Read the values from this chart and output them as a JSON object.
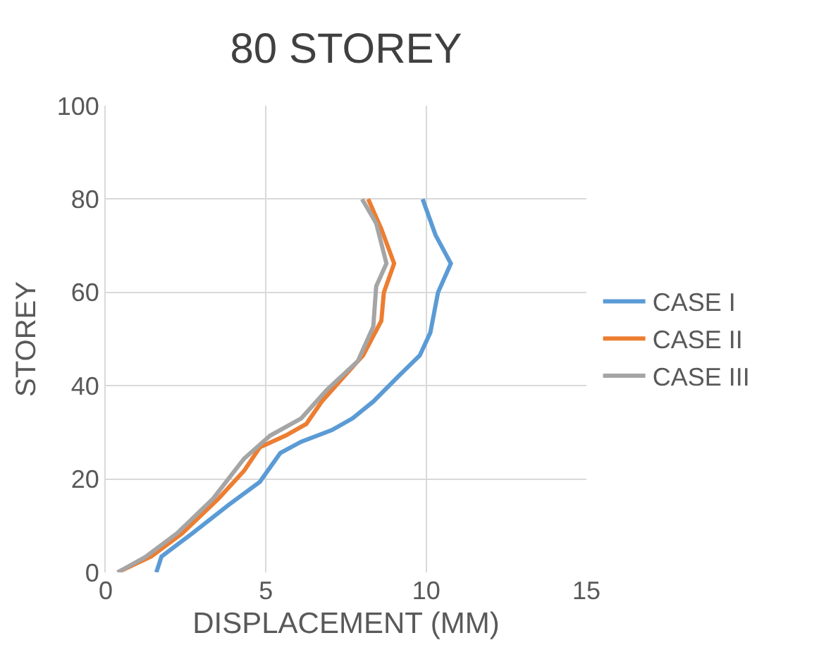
{
  "chart_data": {
    "type": "line",
    "title": "80 STOREY",
    "xlabel": "DISPLACEMENT (MM)",
    "ylabel": "STOREY",
    "xlim": [
      0,
      15
    ],
    "xticks": [
      0,
      5,
      10,
      15
    ],
    "ylim": [
      0,
      100
    ],
    "yticks": [
      0,
      20,
      40,
      60,
      80,
      100
    ],
    "grid": true,
    "legend": "right",
    "marker": "none",
    "line_style": "solid",
    "series": [
      {
        "name": "CASE I",
        "color": "#5b9bd5",
        "x": [
          1.58,
          1.74,
          2.71,
          3.84,
          4.81,
          5.45,
          6.1,
          7.06,
          7.7,
          8.35,
          9.16,
          9.8,
          10.13,
          10.37,
          10.77,
          10.29,
          9.89
        ],
        "values": [
          0,
          3.4,
          8.4,
          14.5,
          19.4,
          25.6,
          28,
          30.5,
          33,
          36.6,
          42.2,
          46.5,
          51.4,
          60,
          66.2,
          72.3,
          80
        ]
      },
      {
        "name": "CASE II",
        "color": "#ed7d31",
        "x": [
          0.37,
          1.42,
          2.39,
          3.52,
          4.32,
          4.81,
          5.61,
          6.26,
          6.74,
          7.39,
          8.03,
          8.6,
          8.68,
          9.0,
          8.6,
          8.19
        ],
        "values": [
          0,
          3.4,
          8.4,
          15.8,
          21.8,
          26.8,
          29.3,
          31.8,
          36.6,
          41.6,
          46.5,
          53.9,
          60,
          66.2,
          73.6,
          80
        ]
      },
      {
        "name": "CASE III",
        "color": "#a5a5a5",
        "x": [
          0.37,
          1.26,
          2.23,
          3.35,
          4.32,
          5.13,
          6.1,
          6.9,
          7.87,
          8.35,
          8.44,
          8.76,
          8.44,
          8.0
        ],
        "values": [
          0,
          3.4,
          8.4,
          15.8,
          24.4,
          29.3,
          33,
          39.1,
          45.3,
          52.7,
          61.3,
          66.2,
          74.8,
          80
        ]
      }
    ]
  }
}
